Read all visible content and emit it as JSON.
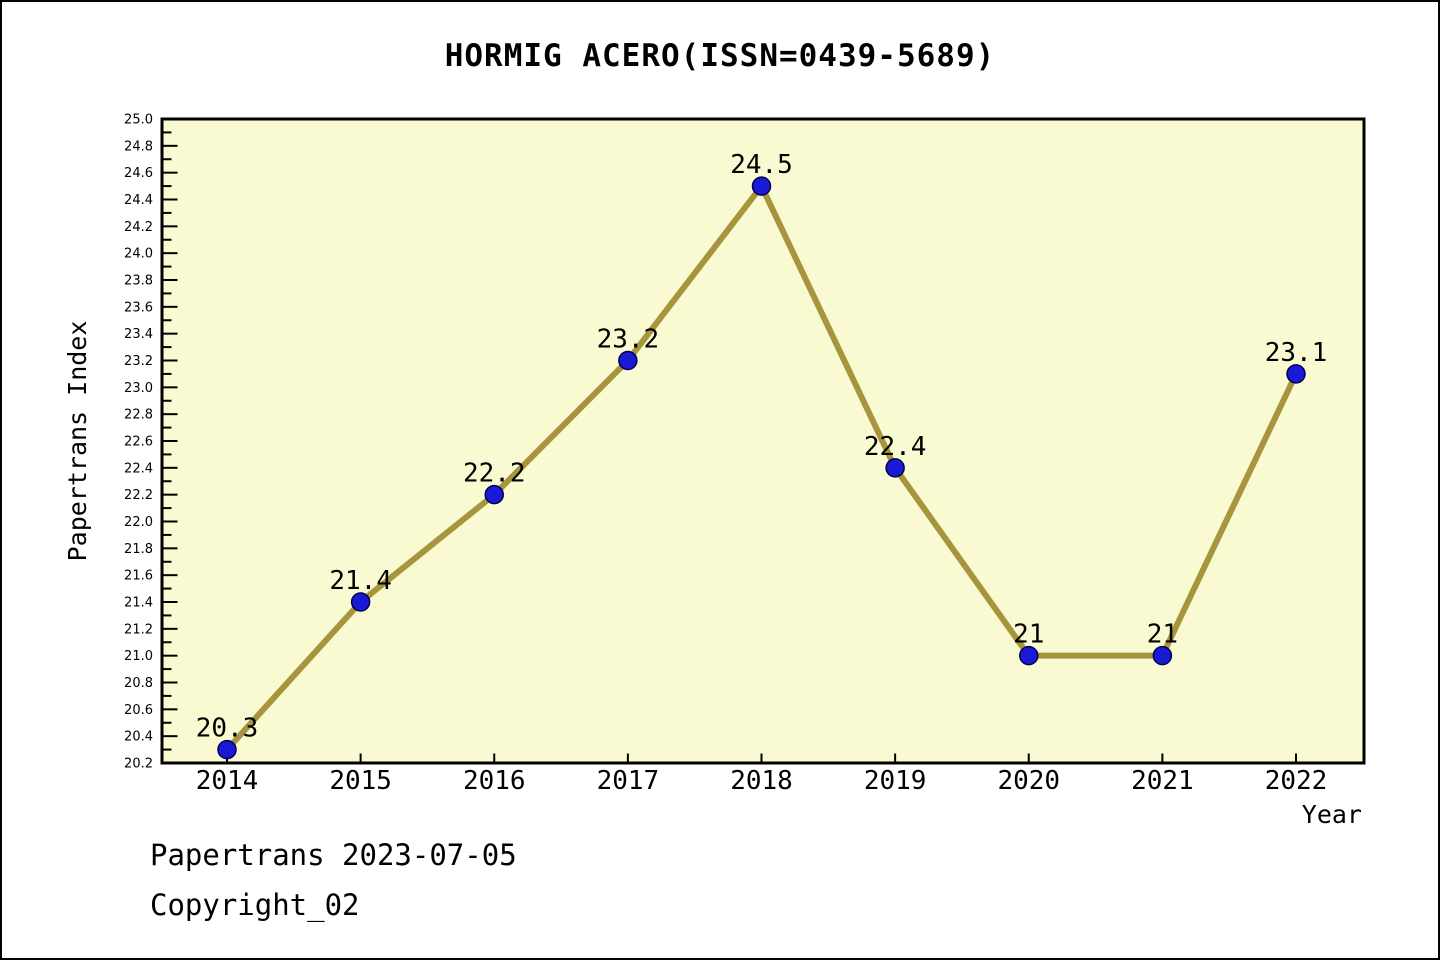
{
  "title": "HORMIG ACERO(ISSN=0439-5689)",
  "footer": {
    "line1": "Papertrans 2023-07-05",
    "line2": "Copyright_02"
  },
  "chart_data": {
    "type": "line",
    "x": [
      2014,
      2015,
      2016,
      2017,
      2018,
      2019,
      2020,
      2021,
      2022
    ],
    "values": [
      20.3,
      21.4,
      22.2,
      23.2,
      24.5,
      22.4,
      21,
      21,
      23.1
    ],
    "point_labels": [
      "20.3",
      "21.4",
      "22.2",
      "23.2",
      "24.5",
      "22.4",
      "21",
      "21",
      "23.1"
    ],
    "title": "HORMIG ACERO(ISSN=0439-5689)",
    "xlabel": "Year",
    "ylabel": "Papertrans Index",
    "ylim": [
      20.2,
      25.0
    ],
    "ytick_major_step": 0.2,
    "ytick_minor_step": 0.1,
    "grid": false,
    "legend": null,
    "colors": {
      "plot_bg": "#FAFAD2",
      "line": "#A6953C",
      "marker_fill": "#1A1AD6",
      "marker_edge": "#000050",
      "axis": "#000000",
      "text": "#000000"
    }
  }
}
